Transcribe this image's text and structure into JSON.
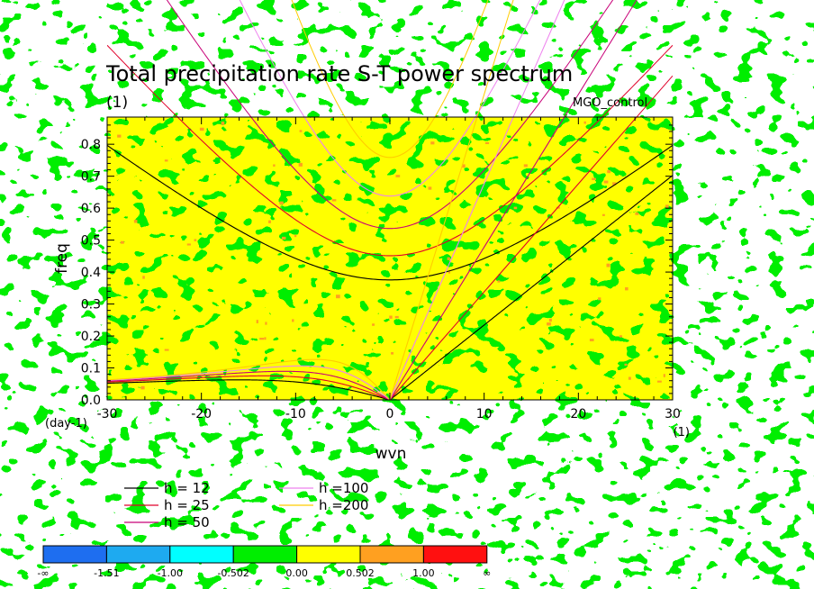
{
  "chart_data": {
    "type": "heatmap",
    "title": "Total precipitation rate S-T power spectrum",
    "title_units": "(1)",
    "dataset_label": "MGO_control",
    "xlabel": "wvn",
    "ylabel": "freq",
    "x_units": "(1)",
    "y_units": "(day-1)",
    "xlim": [
      -30,
      30
    ],
    "ylim": [
      0,
      0.885
    ],
    "x_ticks": [
      -30,
      -20,
      -10,
      0,
      10,
      20,
      30
    ],
    "x_tick_labels": [
      "-30",
      "-20",
      "-10",
      "0",
      "10",
      "20",
      "30"
    ],
    "y_ticks": [
      0.0,
      0.1,
      0.2,
      0.3,
      0.4,
      0.5,
      0.6,
      0.7,
      0.8
    ],
    "y_tick_labels": [
      "0.0",
      "0.1",
      "0.2",
      "0.3",
      "0.4",
      "0.5",
      "0.6",
      "0.7",
      "0.8"
    ],
    "field_description": "noisy field dominated by levels 0.00 to 0.502 (yellow) with patches of -0.502 to 0.00 (green) and sparse 0.502 to 1.00 (orange)",
    "colorbar": {
      "labels": [
        "-∞",
        "-1.51",
        "-1.00",
        "-0.502",
        "0.00",
        "0.502",
        "1.00",
        "∞"
      ],
      "colors": [
        "#1e6ef0",
        "#1eaaf0",
        "#00ffff",
        "#00ee00",
        "#ffff00",
        "#ffa020",
        "#ff1010"
      ]
    },
    "dispersion_curves": [
      {
        "label": "h = 12",
        "h": 12,
        "color": "#000000"
      },
      {
        "label": "h = 25",
        "h": 25,
        "color": "#e0002a"
      },
      {
        "label": "h = 50",
        "h": 50,
        "color": "#c80078"
      },
      {
        "label": "h =100",
        "h": 100,
        "color": "#ee82ee"
      },
      {
        "label": "h =200",
        "h": 200,
        "color": "#ffcc00"
      }
    ]
  }
}
